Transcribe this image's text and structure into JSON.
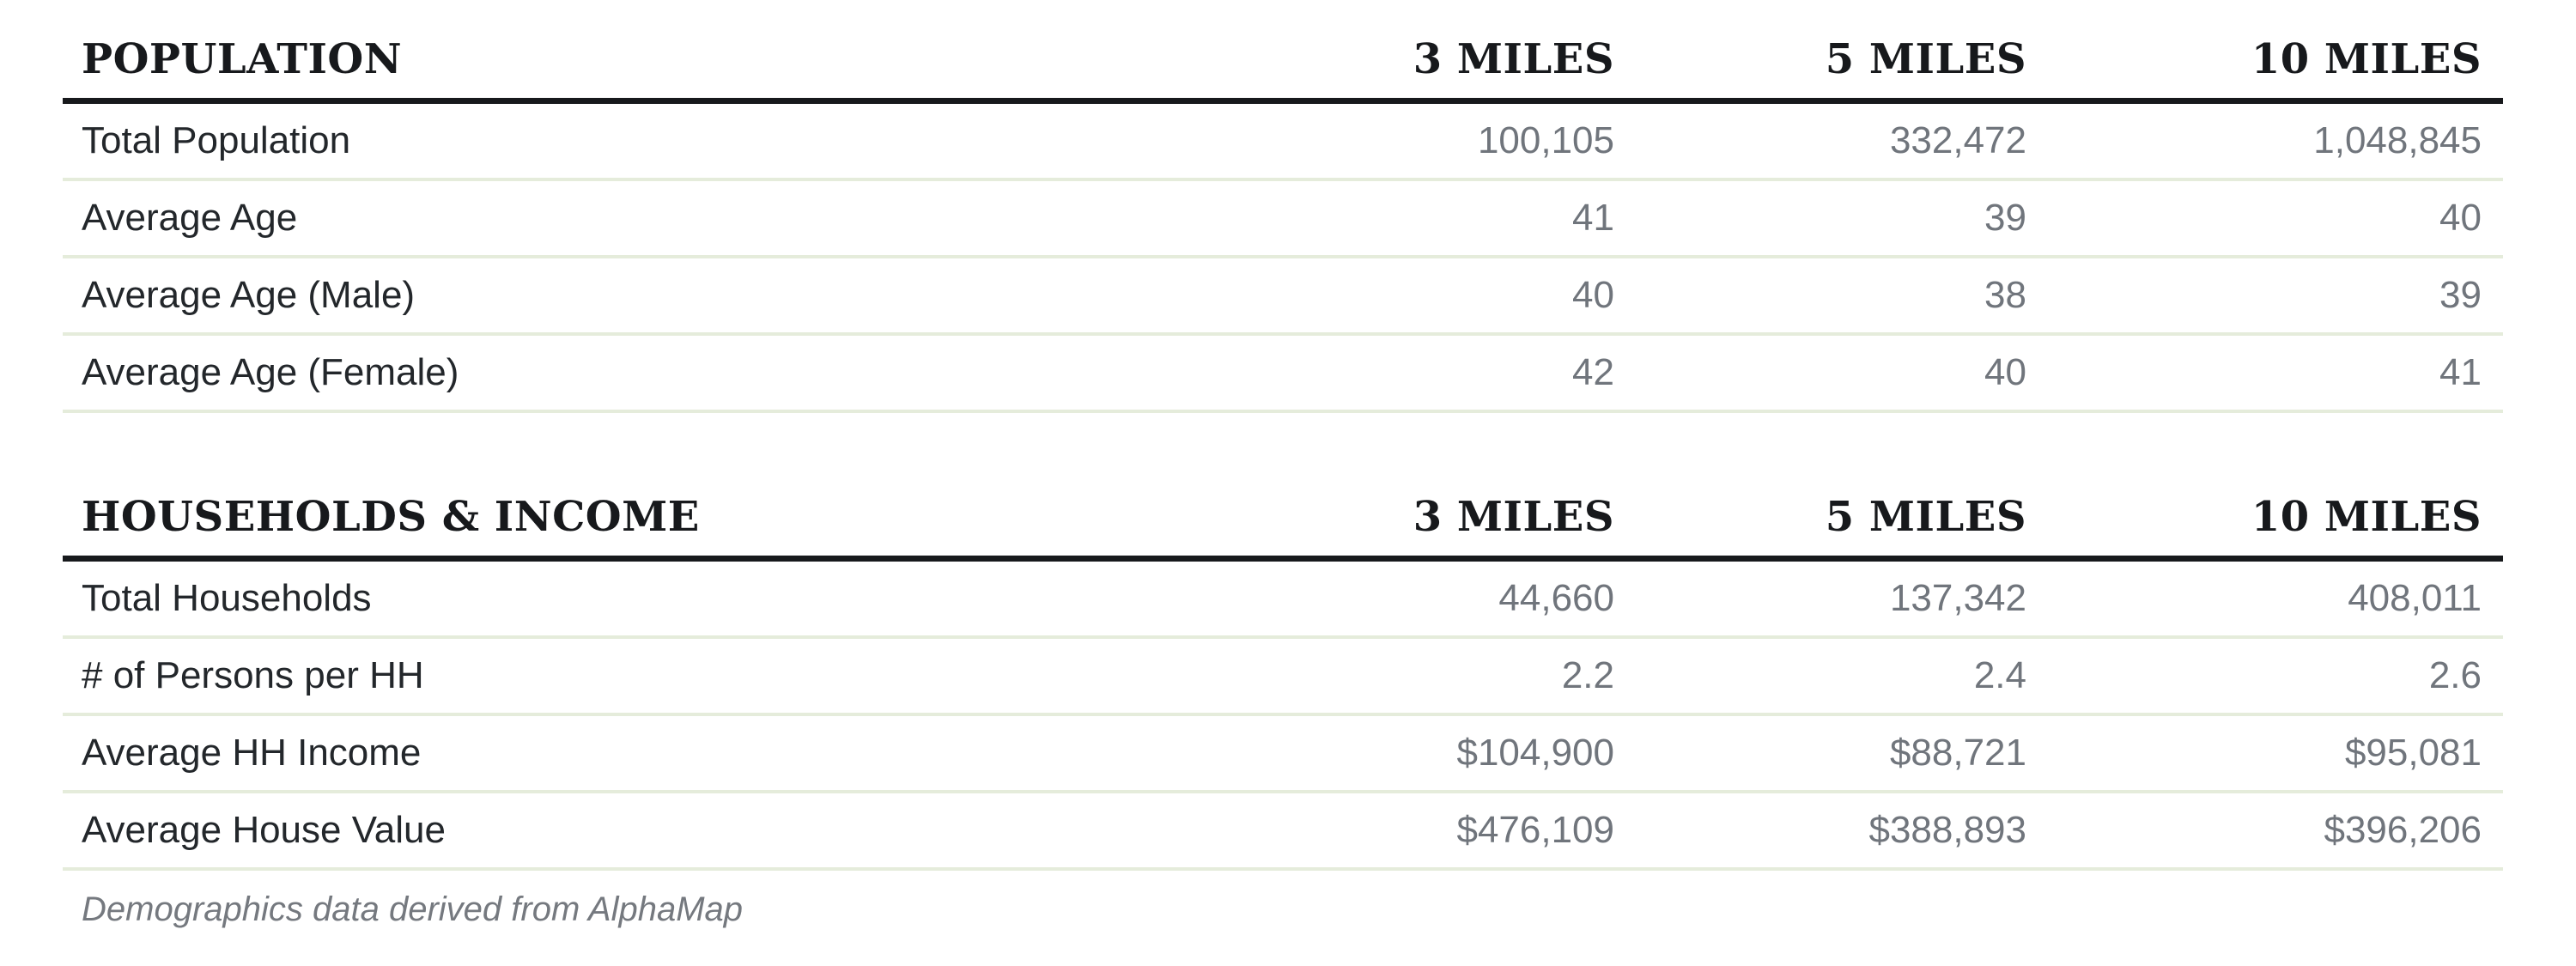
{
  "colors": {
    "header_text": "#17191c",
    "header_rule": "#17191c",
    "row_label_text": "#23272b",
    "value_text": "#70757c",
    "row_separator": "#e5ecdb",
    "footnote_text": "#75797f",
    "background": "#ffffff"
  },
  "tables": [
    {
      "name": "population",
      "header": {
        "title": "POPULATION",
        "columns": [
          "3 MILES",
          "5 MILES",
          "10 MILES"
        ]
      },
      "rows": [
        {
          "label": "Total Population",
          "values": [
            "100,105",
            "332,472",
            "1,048,845"
          ]
        },
        {
          "label": "Average Age",
          "values": [
            "41",
            "39",
            "40"
          ]
        },
        {
          "label": "Average Age (Male)",
          "values": [
            "40",
            "38",
            "39"
          ]
        },
        {
          "label": "Average Age (Female)",
          "values": [
            "42",
            "40",
            "41"
          ]
        }
      ]
    },
    {
      "name": "households-income",
      "header": {
        "title": "HOUSEHOLDS & INCOME",
        "columns": [
          "3 MILES",
          "5 MILES",
          "10 MILES"
        ]
      },
      "rows": [
        {
          "label": "Total Households",
          "values": [
            "44,660",
            "137,342",
            "408,011"
          ]
        },
        {
          "label": "# of Persons per HH",
          "values": [
            "2.2",
            "2.4",
            "2.6"
          ]
        },
        {
          "label": "Average HH Income",
          "values": [
            "$104,900",
            "$88,721",
            "$95,081"
          ]
        },
        {
          "label": "Average House Value",
          "values": [
            "$476,109",
            "$388,893",
            "$396,206"
          ]
        }
      ]
    }
  ],
  "footnote": "Demographics data derived from AlphaMap"
}
